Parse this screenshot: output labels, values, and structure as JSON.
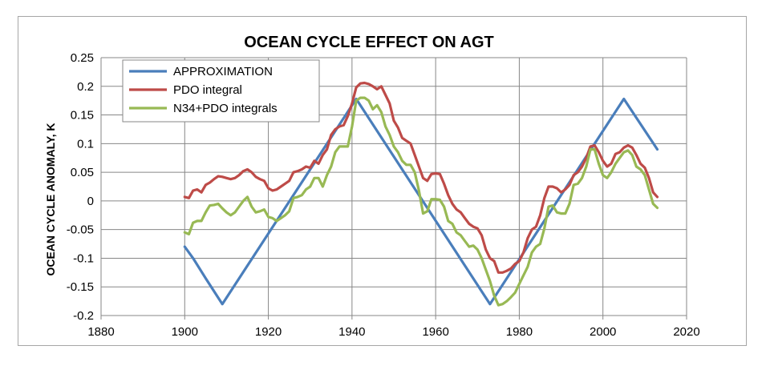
{
  "chart_data": {
    "type": "line",
    "title": "OCEAN CYCLE EFFECT ON AGT",
    "xlabel": "",
    "ylabel": "OCEAN CYCLE ANOMALY, K",
    "xlim": [
      1880,
      2020
    ],
    "ylim": [
      -0.2,
      0.25
    ],
    "x_ticks": [
      1880,
      1900,
      1920,
      1940,
      1960,
      1980,
      2000,
      2020
    ],
    "y_ticks": [
      -0.2,
      -0.15,
      -0.1,
      -0.05,
      0,
      0.05,
      0.1,
      0.15,
      0.2,
      0.25
    ],
    "y_tick_labels": [
      "-0.2",
      "-0.15",
      "-0.1",
      "-0.05",
      "0",
      "0.05",
      "0.1",
      "0.15",
      "0.2",
      "0.25"
    ],
    "grid": true,
    "legend_position": "top-left",
    "series": [
      {
        "name": "APPROXIMATION",
        "color": "#4a7ebb",
        "points": [
          [
            1900,
            -0.08
          ],
          [
            1902,
            -0.1
          ],
          [
            1905,
            -0.135
          ],
          [
            1909,
            -0.18
          ],
          [
            1941,
            0.178
          ],
          [
            1973,
            -0.18
          ],
          [
            2005,
            0.178
          ],
          [
            2013,
            0.09
          ]
        ]
      },
      {
        "name": "PDO integral",
        "color": "#be4b48",
        "points": [
          [
            1900,
            0.007
          ],
          [
            1901,
            0.005
          ],
          [
            1902,
            0.018
          ],
          [
            1903,
            0.02
          ],
          [
            1904,
            0.015
          ],
          [
            1905,
            0.028
          ],
          [
            1906,
            0.032
          ],
          [
            1907,
            0.038
          ],
          [
            1908,
            0.043
          ],
          [
            1909,
            0.042
          ],
          [
            1910,
            0.04
          ],
          [
            1911,
            0.038
          ],
          [
            1912,
            0.04
          ],
          [
            1913,
            0.045
          ],
          [
            1914,
            0.052
          ],
          [
            1915,
            0.055
          ],
          [
            1916,
            0.05
          ],
          [
            1917,
            0.042
          ],
          [
            1918,
            0.038
          ],
          [
            1919,
            0.035
          ],
          [
            1920,
            0.022
          ],
          [
            1921,
            0.018
          ],
          [
            1922,
            0.02
          ],
          [
            1923,
            0.025
          ],
          [
            1924,
            0.03
          ],
          [
            1925,
            0.035
          ],
          [
            1926,
            0.05
          ],
          [
            1927,
            0.052
          ],
          [
            1928,
            0.055
          ],
          [
            1929,
            0.06
          ],
          [
            1930,
            0.058
          ],
          [
            1931,
            0.07
          ],
          [
            1932,
            0.065
          ],
          [
            1933,
            0.08
          ],
          [
            1934,
            0.09
          ],
          [
            1935,
            0.115
          ],
          [
            1936,
            0.125
          ],
          [
            1937,
            0.13
          ],
          [
            1938,
            0.132
          ],
          [
            1939,
            0.148
          ],
          [
            1940,
            0.17
          ],
          [
            1941,
            0.198
          ],
          [
            1942,
            0.205
          ],
          [
            1943,
            0.206
          ],
          [
            1944,
            0.204
          ],
          [
            1945,
            0.2
          ],
          [
            1946,
            0.195
          ],
          [
            1947,
            0.2
          ],
          [
            1948,
            0.185
          ],
          [
            1949,
            0.17
          ],
          [
            1950,
            0.14
          ],
          [
            1951,
            0.128
          ],
          [
            1952,
            0.11
          ],
          [
            1953,
            0.105
          ],
          [
            1954,
            0.1
          ],
          [
            1955,
            0.08
          ],
          [
            1956,
            0.06
          ],
          [
            1957,
            0.04
          ],
          [
            1958,
            0.035
          ],
          [
            1959,
            0.047
          ],
          [
            1960,
            0.048
          ],
          [
            1961,
            0.047
          ],
          [
            1962,
            0.03
          ],
          [
            1963,
            0.01
          ],
          [
            1964,
            -0.005
          ],
          [
            1965,
            -0.015
          ],
          [
            1966,
            -0.02
          ],
          [
            1967,
            -0.03
          ],
          [
            1968,
            -0.04
          ],
          [
            1969,
            -0.045
          ],
          [
            1970,
            -0.048
          ],
          [
            1971,
            -0.06
          ],
          [
            1972,
            -0.085
          ],
          [
            1973,
            -0.1
          ],
          [
            1974,
            -0.105
          ],
          [
            1975,
            -0.125
          ],
          [
            1976,
            -0.125
          ],
          [
            1977,
            -0.122
          ],
          [
            1978,
            -0.118
          ],
          [
            1979,
            -0.11
          ],
          [
            1980,
            -0.105
          ],
          [
            1981,
            -0.09
          ],
          [
            1982,
            -0.065
          ],
          [
            1983,
            -0.05
          ],
          [
            1984,
            -0.045
          ],
          [
            1985,
            -0.025
          ],
          [
            1986,
            0.005
          ],
          [
            1987,
            0.025
          ],
          [
            1988,
            0.025
          ],
          [
            1989,
            0.022
          ],
          [
            1990,
            0.015
          ],
          [
            1991,
            0.02
          ],
          [
            1992,
            0.028
          ],
          [
            1993,
            0.045
          ],
          [
            1994,
            0.05
          ],
          [
            1995,
            0.06
          ],
          [
            1996,
            0.075
          ],
          [
            1997,
            0.095
          ],
          [
            1998,
            0.097
          ],
          [
            1999,
            0.085
          ],
          [
            2000,
            0.07
          ],
          [
            2001,
            0.06
          ],
          [
            2002,
            0.065
          ],
          [
            2003,
            0.082
          ],
          [
            2004,
            0.085
          ],
          [
            2005,
            0.093
          ],
          [
            2006,
            0.097
          ],
          [
            2007,
            0.093
          ],
          [
            2008,
            0.08
          ],
          [
            2009,
            0.065
          ],
          [
            2010,
            0.058
          ],
          [
            2011,
            0.04
          ],
          [
            2012,
            0.015
          ],
          [
            2013,
            0.007
          ]
        ]
      },
      {
        "name": "N34+PDO integrals",
        "color": "#98b954",
        "points": [
          [
            1900,
            -0.055
          ],
          [
            1901,
            -0.058
          ],
          [
            1902,
            -0.038
          ],
          [
            1903,
            -0.035
          ],
          [
            1904,
            -0.035
          ],
          [
            1905,
            -0.02
          ],
          [
            1906,
            -0.008
          ],
          [
            1907,
            -0.007
          ],
          [
            1908,
            -0.005
          ],
          [
            1909,
            -0.013
          ],
          [
            1910,
            -0.02
          ],
          [
            1911,
            -0.025
          ],
          [
            1912,
            -0.02
          ],
          [
            1913,
            -0.01
          ],
          [
            1914,
            0.0
          ],
          [
            1915,
            0.007
          ],
          [
            1916,
            -0.01
          ],
          [
            1917,
            -0.02
          ],
          [
            1918,
            -0.018
          ],
          [
            1919,
            -0.015
          ],
          [
            1920,
            -0.028
          ],
          [
            1921,
            -0.03
          ],
          [
            1922,
            -0.035
          ],
          [
            1923,
            -0.03
          ],
          [
            1924,
            -0.025
          ],
          [
            1925,
            -0.018
          ],
          [
            1926,
            0.005
          ],
          [
            1927,
            0.007
          ],
          [
            1928,
            0.01
          ],
          [
            1929,
            0.02
          ],
          [
            1930,
            0.025
          ],
          [
            1931,
            0.04
          ],
          [
            1932,
            0.04
          ],
          [
            1933,
            0.025
          ],
          [
            1934,
            0.045
          ],
          [
            1935,
            0.06
          ],
          [
            1936,
            0.085
          ],
          [
            1937,
            0.095
          ],
          [
            1938,
            0.095
          ],
          [
            1939,
            0.095
          ],
          [
            1940,
            0.13
          ],
          [
            1941,
            0.175
          ],
          [
            1942,
            0.18
          ],
          [
            1943,
            0.18
          ],
          [
            1944,
            0.175
          ],
          [
            1945,
            0.16
          ],
          [
            1946,
            0.167
          ],
          [
            1947,
            0.155
          ],
          [
            1948,
            0.13
          ],
          [
            1949,
            0.115
          ],
          [
            1950,
            0.095
          ],
          [
            1951,
            0.085
          ],
          [
            1952,
            0.07
          ],
          [
            1953,
            0.063
          ],
          [
            1954,
            0.063
          ],
          [
            1955,
            0.05
          ],
          [
            1956,
            0.018
          ],
          [
            1957,
            -0.022
          ],
          [
            1958,
            -0.018
          ],
          [
            1959,
            0.003
          ],
          [
            1960,
            0.003
          ],
          [
            1961,
            0.002
          ],
          [
            1962,
            -0.01
          ],
          [
            1963,
            -0.035
          ],
          [
            1964,
            -0.04
          ],
          [
            1965,
            -0.055
          ],
          [
            1966,
            -0.06
          ],
          [
            1967,
            -0.07
          ],
          [
            1968,
            -0.08
          ],
          [
            1969,
            -0.078
          ],
          [
            1970,
            -0.085
          ],
          [
            1971,
            -0.1
          ],
          [
            1972,
            -0.12
          ],
          [
            1973,
            -0.14
          ],
          [
            1974,
            -0.165
          ],
          [
            1975,
            -0.182
          ],
          [
            1976,
            -0.18
          ],
          [
            1977,
            -0.175
          ],
          [
            1978,
            -0.168
          ],
          [
            1979,
            -0.16
          ],
          [
            1980,
            -0.145
          ],
          [
            1981,
            -0.13
          ],
          [
            1982,
            -0.115
          ],
          [
            1983,
            -0.09
          ],
          [
            1984,
            -0.08
          ],
          [
            1985,
            -0.075
          ],
          [
            1986,
            -0.048
          ],
          [
            1987,
            -0.01
          ],
          [
            1988,
            -0.008
          ],
          [
            1989,
            -0.02
          ],
          [
            1990,
            -0.022
          ],
          [
            1991,
            -0.022
          ],
          [
            1992,
            -0.005
          ],
          [
            1993,
            0.028
          ],
          [
            1994,
            0.03
          ],
          [
            1995,
            0.04
          ],
          [
            1996,
            0.06
          ],
          [
            1997,
            0.09
          ],
          [
            1998,
            0.09
          ],
          [
            1999,
            0.065
          ],
          [
            2000,
            0.045
          ],
          [
            2001,
            0.04
          ],
          [
            2002,
            0.05
          ],
          [
            2003,
            0.065
          ],
          [
            2004,
            0.075
          ],
          [
            2005,
            0.085
          ],
          [
            2006,
            0.088
          ],
          [
            2007,
            0.08
          ],
          [
            2008,
            0.06
          ],
          [
            2009,
            0.055
          ],
          [
            2010,
            0.045
          ],
          [
            2011,
            0.02
          ],
          [
            2012,
            -0.005
          ],
          [
            2013,
            -0.012
          ]
        ]
      }
    ]
  }
}
